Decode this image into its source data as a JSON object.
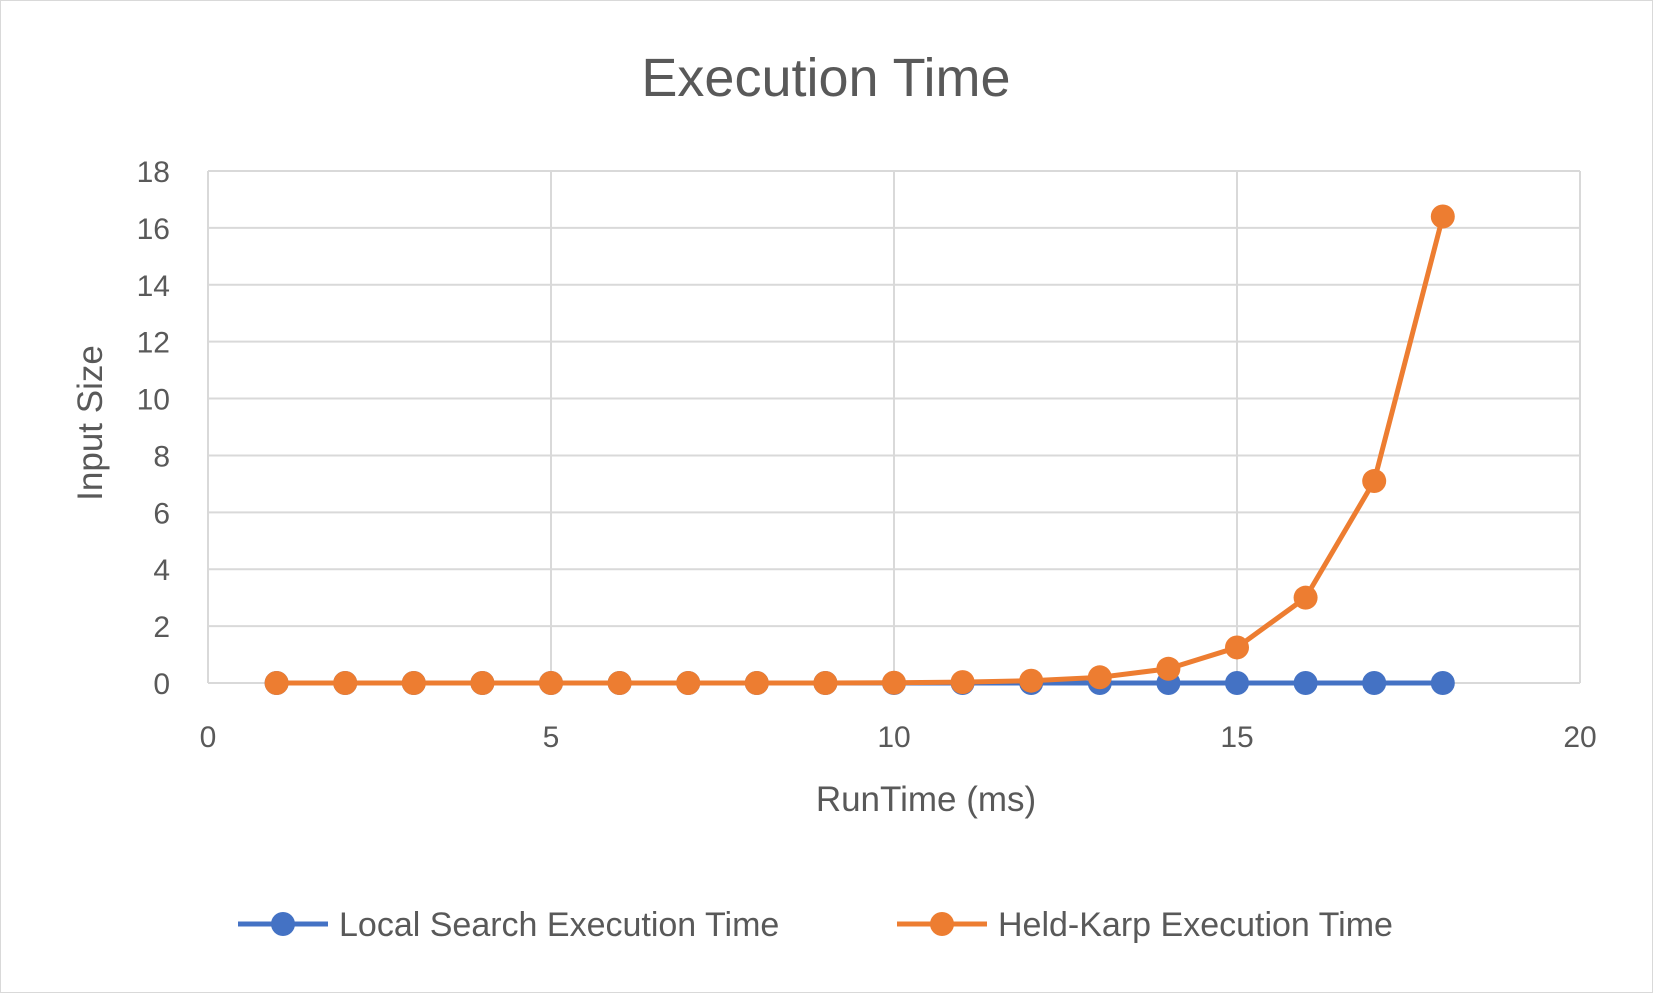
{
  "chart_data": {
    "type": "scatter",
    "title": "Execution Time",
    "xlabel": "RunTime (ms)",
    "ylabel": "Input Size",
    "xlim": [
      0,
      20
    ],
    "ylim": [
      0,
      18
    ],
    "x_ticks": [
      "0",
      "5",
      "10",
      "15",
      "20"
    ],
    "y_ticks": [
      "0",
      "2",
      "4",
      "6",
      "8",
      "10",
      "12",
      "14",
      "16",
      "18"
    ],
    "grid": true,
    "lines_with_markers": true,
    "legend_position": "bottom",
    "series": [
      {
        "name": "Local Search Execution Time",
        "color": "#4472C4",
        "x": [
          1,
          2,
          3,
          4,
          5,
          6,
          7,
          8,
          9,
          10,
          11,
          12,
          13,
          14,
          15,
          16,
          17,
          18
        ],
        "y": [
          0,
          0,
          0,
          0,
          0,
          0,
          0,
          0,
          0,
          0,
          0,
          0,
          0,
          0,
          0,
          0,
          0,
          0
        ]
      },
      {
        "name": "Held-Karp Execution Time",
        "color": "#ED7D31",
        "x": [
          1,
          2,
          3,
          4,
          5,
          6,
          7,
          8,
          9,
          10,
          11,
          12,
          13,
          14,
          15,
          16,
          17,
          18
        ],
        "y": [
          0,
          0,
          0,
          0,
          0,
          0,
          0,
          0,
          0,
          0.01,
          0.03,
          0.08,
          0.2,
          0.5,
          1.25,
          3.0,
          7.1,
          16.4
        ]
      }
    ]
  }
}
